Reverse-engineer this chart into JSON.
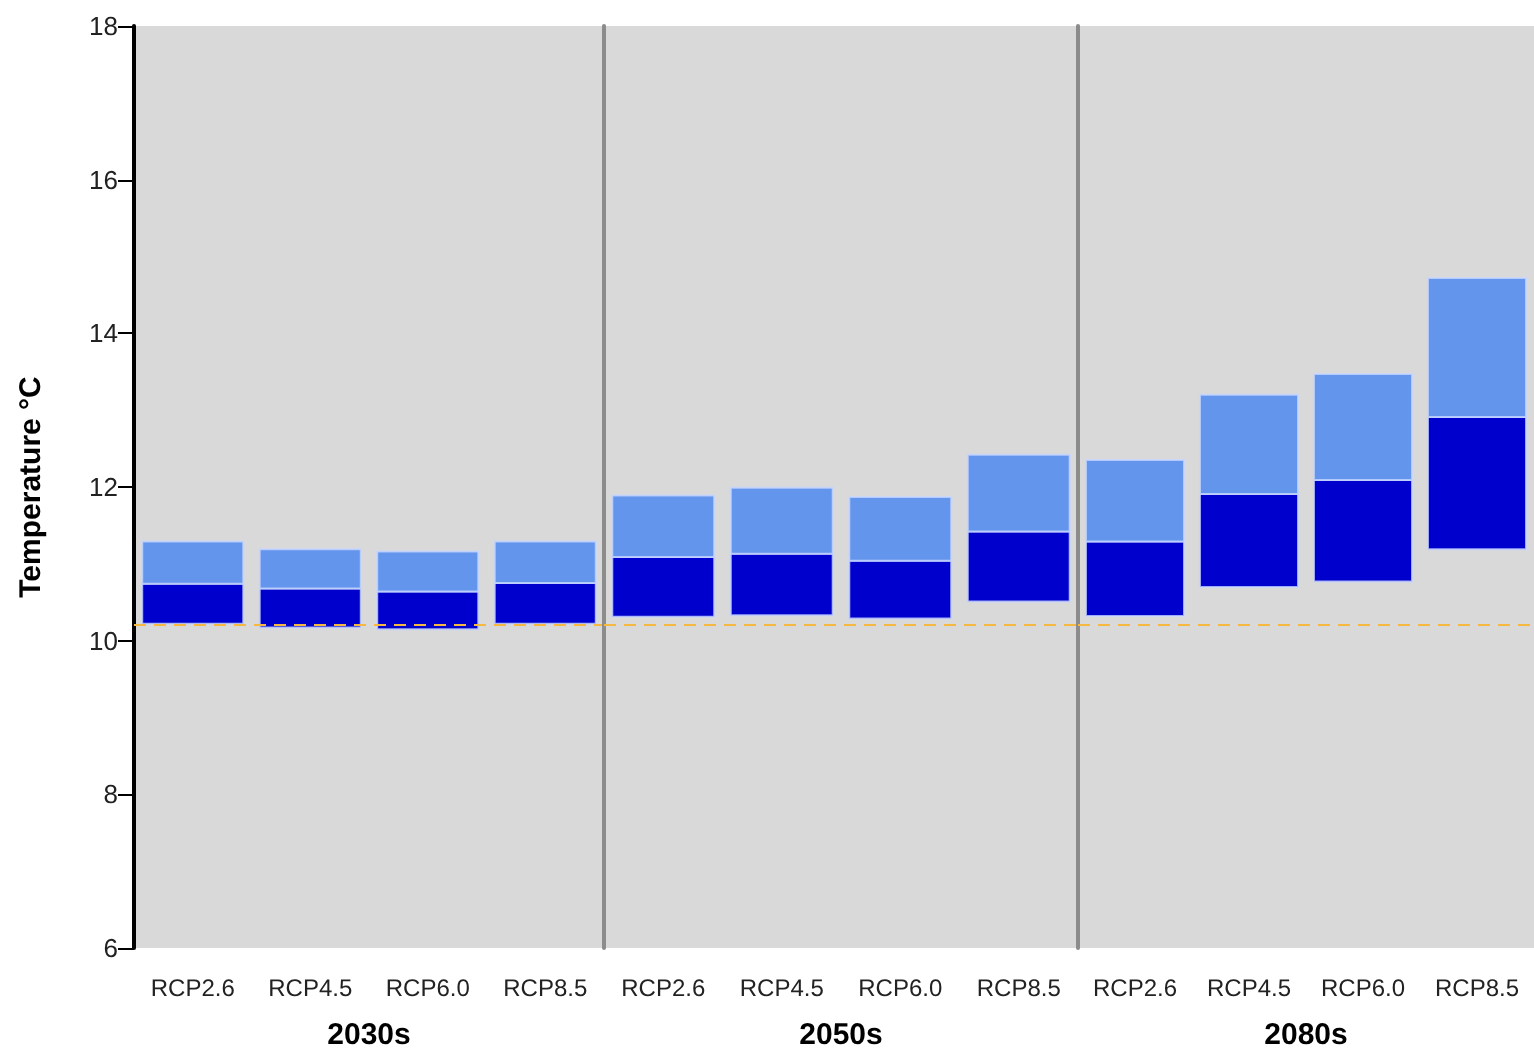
{
  "chart_data": [
    {
      "type": "bar",
      "ylabel": "Temperature °C",
      "xlabel": "2030s",
      "categories": [
        "RCP2.6",
        "RCP4.5",
        "RCP6.0",
        "RCP8.5"
      ],
      "series": [
        {
          "color": "#0000cc",
          "base": [
            10.22,
            10.17,
            10.15,
            10.22
          ],
          "values": [
            0.52,
            0.51,
            0.49,
            0.53
          ]
        },
        {
          "color": "#6495ed",
          "base": [
            10.74,
            10.68,
            10.64,
            10.75
          ],
          "values": [
            0.55,
            0.51,
            0.52,
            0.54
          ]
        }
      ],
      "ylim": [
        6,
        18
      ],
      "yticks": [
        6,
        8,
        10,
        12,
        14,
        16,
        18
      ],
      "ref_lines": [
        {
          "axis": "y",
          "value": 10.22,
          "color": "#f5b942",
          "line_style": "dashed"
        }
      ]
    },
    {
      "type": "bar",
      "xlabel": "2050s",
      "categories": [
        "RCP2.6",
        "RCP4.5",
        "RCP6.0",
        "RCP8.5"
      ],
      "series": [
        {
          "color": "#0000cc",
          "base": [
            10.31,
            10.33,
            10.29,
            10.51
          ],
          "values": [
            0.78,
            0.8,
            0.75,
            0.91
          ]
        },
        {
          "color": "#6495ed",
          "base": [
            11.09,
            11.13,
            11.04,
            11.42
          ],
          "values": [
            0.8,
            0.86,
            0.83,
            1.0
          ]
        }
      ],
      "ylim": [
        6,
        18
      ],
      "yticks": [
        6,
        8,
        10,
        12,
        14,
        16,
        18
      ],
      "tick_labels": "x",
      "ref_lines": [
        {
          "axis": "y",
          "value": 10.22,
          "color": "#f5b942",
          "line_style": "dashed"
        }
      ]
    },
    {
      "type": "bar",
      "xlabel": "2080s",
      "categories": [
        "RCP2.6",
        "RCP4.5",
        "RCP6.0",
        "RCP8.5"
      ],
      "series": [
        {
          "color": "#0000cc",
          "base": [
            10.32,
            10.7,
            10.77,
            11.19
          ],
          "values": [
            0.97,
            1.21,
            1.32,
            1.72
          ]
        },
        {
          "color": "#6495ed",
          "base": [
            11.29,
            11.91,
            12.09,
            12.91
          ],
          "values": [
            1.06,
            1.29,
            1.38,
            1.81
          ]
        }
      ],
      "ylim": [
        6,
        18
      ],
      "yticks": [
        6,
        8,
        10,
        12,
        14,
        16,
        18
      ],
      "tick_labels": "x",
      "ref_lines": [
        {
          "axis": "y",
          "value": 10.22,
          "color": "#f5b942",
          "line_style": "dashed"
        }
      ]
    }
  ]
}
